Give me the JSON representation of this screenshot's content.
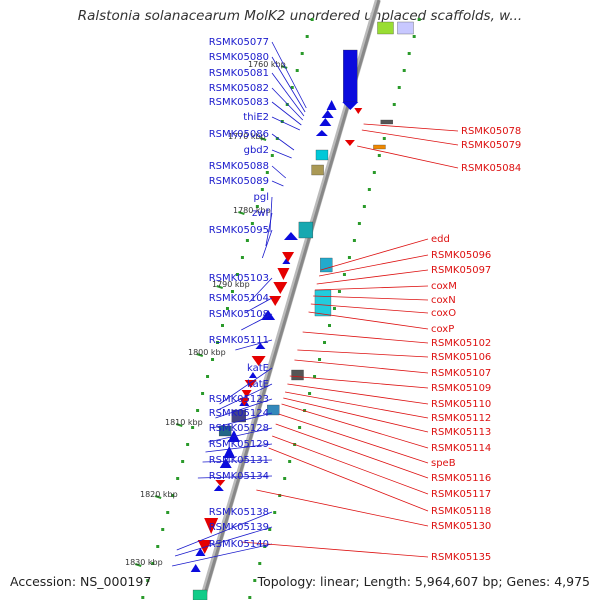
{
  "title": "Ralstonia solanacearum MolK2 unordered unplaced scaffolds, w...",
  "footer": {
    "accession": "Accession: NS_000197",
    "summary": "Topology: linear; Length: 5,964,607 bp; Genes: 4,975"
  },
  "colors": {
    "left_label": "#1a1acc",
    "right_label": "#dd1111",
    "forward_gene": "#0b0bdd",
    "reverse_gene": "#e50000",
    "axis": "#888888",
    "tick": "#2a9a2a"
  },
  "scale_labels": [
    "1760 kbp",
    "1770 kbp",
    "1780 kbp",
    "1790 kbp",
    "1800 kbp",
    "1810 kbp",
    "1820 kbp",
    "1830 kbp"
  ],
  "left_labels": [
    "RSMK05077",
    "RSMK05080",
    "RSMK05081",
    "RSMK05082",
    "RSMK05083",
    "thiE2",
    "RSMK05086",
    "gbd2",
    "RSMK05088",
    "RSMK05089",
    "pgl",
    "zwf",
    "RSMK05095",
    "RSMK05103",
    "RSMK05104",
    "RSMK05108",
    "RSMK05111",
    "katE",
    "katE",
    "RSMK05123",
    "RSMK05124",
    "RSMK05128",
    "RSMK05129",
    "RSMK05131",
    "RSMK05134",
    "RSMK05138",
    "RSMK05139",
    "RSMK05140"
  ],
  "right_labels": [
    "RSMK05078",
    "RSMK05079",
    "RSMK05084",
    "edd",
    "RSMK05096",
    "RSMK05097",
    "coxM",
    "coxN",
    "coxO",
    "coxP",
    "RSMK05102",
    "RSMK05106",
    "RSMK05107",
    "RSMK05109",
    "RSMK05110",
    "RSMK05112",
    "RSMK05113",
    "RSMK05114",
    "speB",
    "RSMK05116",
    "RSMK05117",
    "RSMK05118",
    "RSMK05130",
    "RSMK05135"
  ]
}
